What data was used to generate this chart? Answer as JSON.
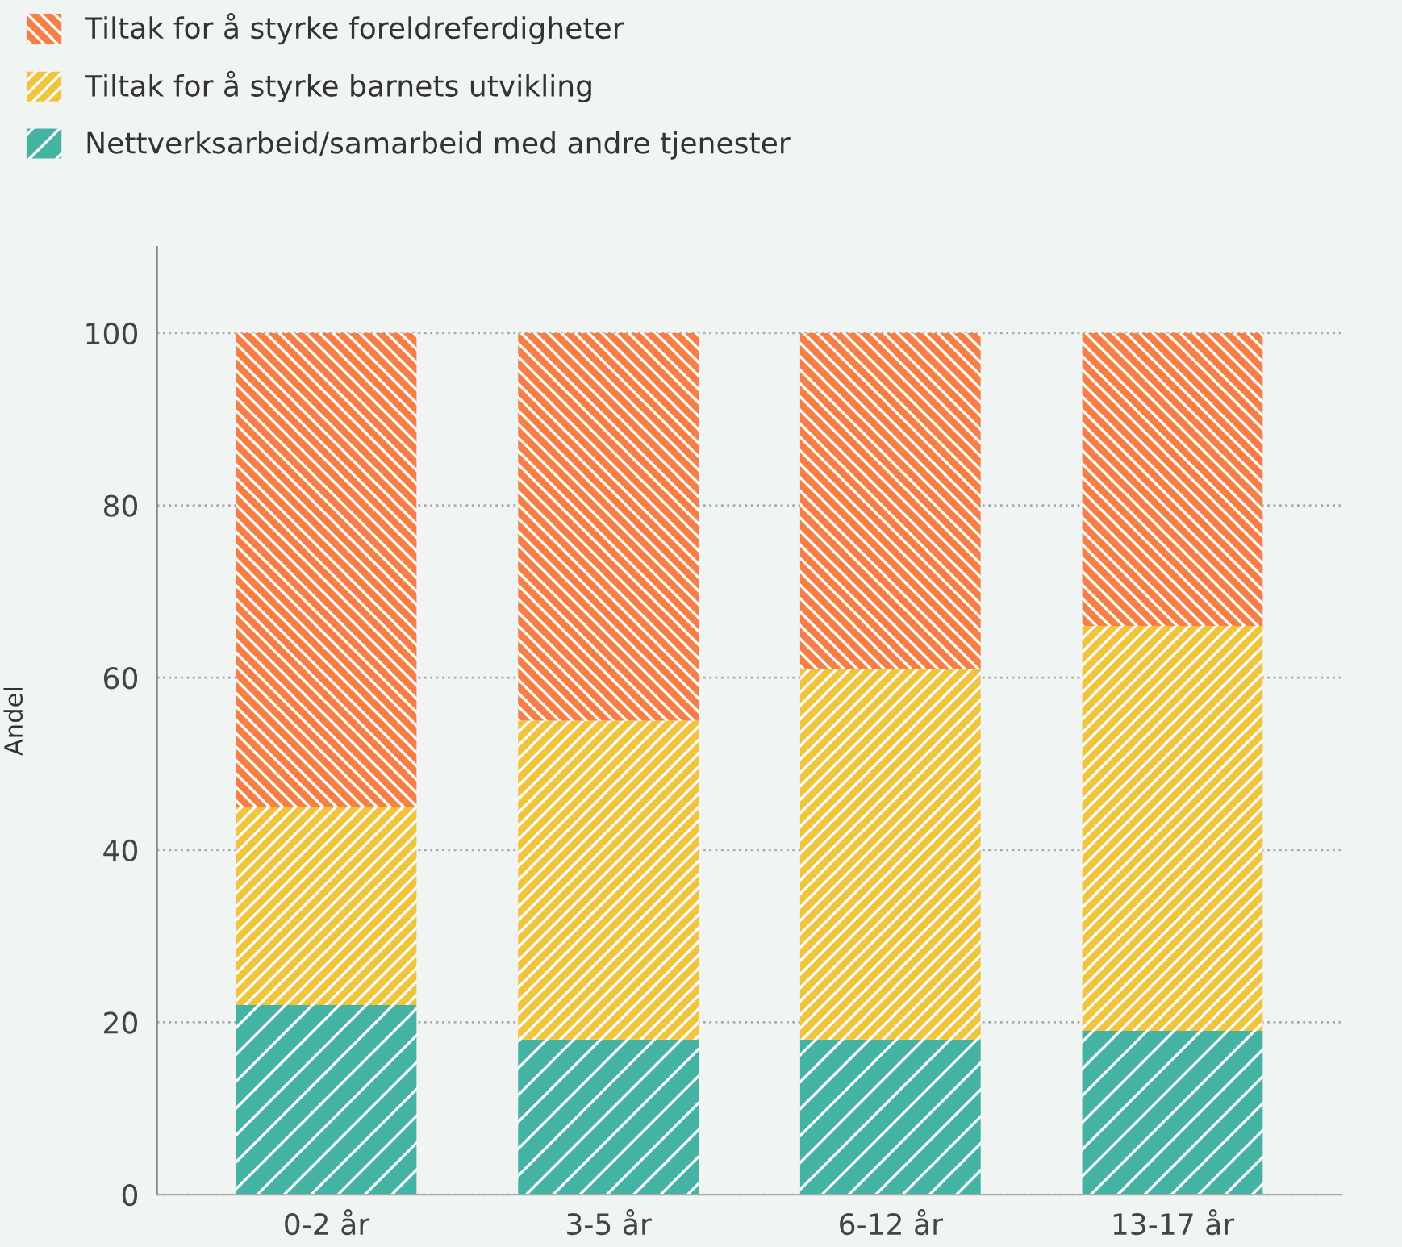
{
  "chart_data": {
    "type": "bar",
    "stacked": true,
    "ylabel": "Andel",
    "categories": [
      "0-2 år",
      "3-5 år",
      "6-12 år",
      "13-17 år"
    ],
    "series": [
      {
        "name": "Nettverksarbeid/samarbeid med andre tjenester",
        "color": "#44b3a4",
        "values": [
          22,
          18,
          18,
          19
        ]
      },
      {
        "name": "Tiltak for å styrke barnets utvikling",
        "color": "#f2c33c",
        "values": [
          23,
          37,
          43,
          47
        ]
      },
      {
        "name": "Tiltak for å styrke foreldreferdigheter",
        "color": "#f77f45",
        "values": [
          55,
          45,
          39,
          34
        ]
      }
    ],
    "ylim": [
      0,
      110
    ],
    "yticks": [
      0,
      20,
      40,
      60,
      80,
      100
    ],
    "grid": "y",
    "legend": "top left"
  }
}
